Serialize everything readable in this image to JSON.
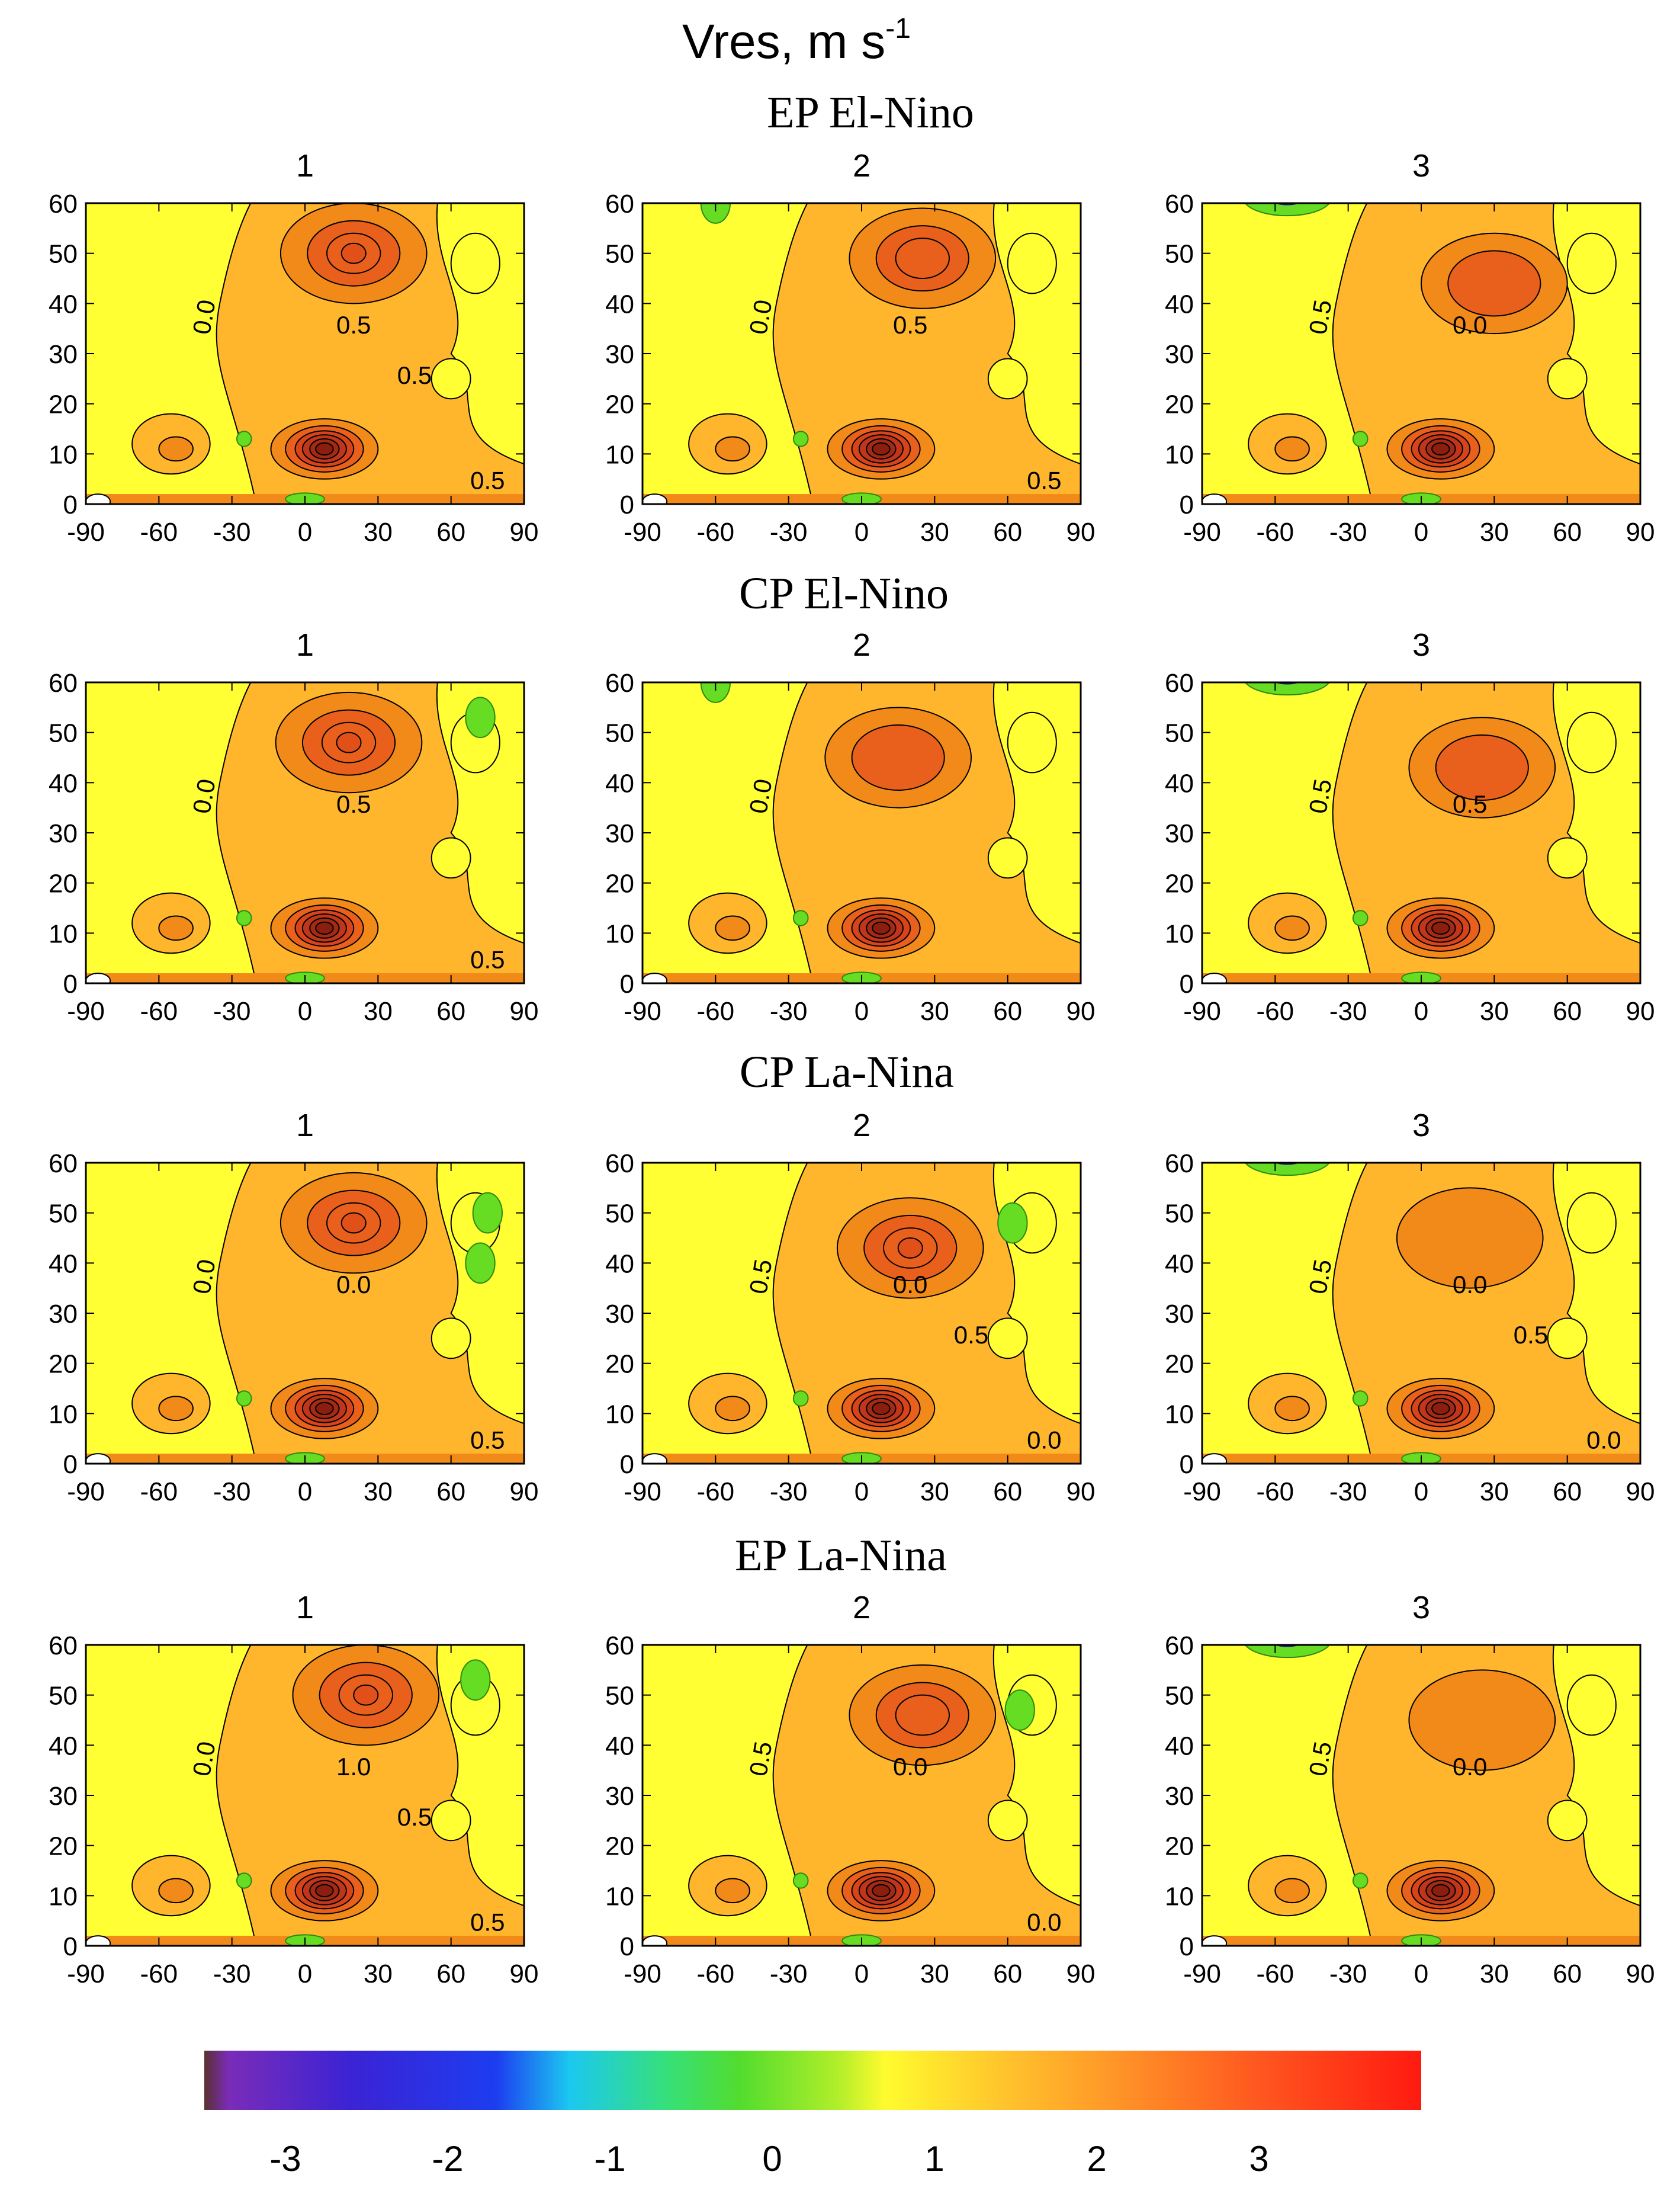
{
  "figure": {
    "title": "Vres, m s",
    "title_exponent": "-1",
    "colors": {
      "yellow": "#ffff33",
      "orange": "#ffb62c",
      "dark_orange": "#f28a1a",
      "red_orange": "#e9601c",
      "dark_red": "#8b1e0f",
      "green": "#66dd22",
      "blue": "#1f33cc"
    }
  },
  "chart_data": {
    "type": "heatmap",
    "variable": "Vres",
    "units": "m s-1",
    "xlim": [
      -90,
      90
    ],
    "ylim": [
      0,
      60
    ],
    "x_ticks": [
      "-90",
      "-60",
      "-30",
      "0",
      "30",
      "60",
      "90"
    ],
    "y_ticks": [
      "0",
      "10",
      "20",
      "30",
      "40",
      "50",
      "60"
    ],
    "panel_columns": [
      "1",
      "2",
      "3"
    ],
    "colorbar": {
      "range": [
        -3.5,
        4
      ],
      "ticks": [
        "-3",
        "-2",
        "-1",
        "0",
        "1",
        "2",
        "3"
      ],
      "tick_values": [
        -3,
        -2,
        -1,
        0,
        1,
        2,
        3
      ]
    },
    "rows": [
      {
        "title": "EP El-Nino",
        "panels": [
          {
            "label": "1",
            "contour_labels": [
              "0.0",
              "0.5",
              "0.5",
              "0.5"
            ],
            "upper_max_lat": 20,
            "upper_max_alt": 50,
            "upper_strength": 3,
            "green_spots": []
          },
          {
            "label": "2",
            "contour_labels": [
              "0.0",
              "0.5",
              "0.5"
            ],
            "upper_max_lat": 25,
            "upper_max_alt": 49,
            "upper_strength": 2,
            "green_spots": [
              {
                "lat": -60,
                "alt": 60
              }
            ]
          },
          {
            "label": "3",
            "contour_labels": [
              "0.5",
              "0.0"
            ],
            "upper_max_lat": 30,
            "upper_max_alt": 44,
            "upper_strength": 1,
            "green_spots": [],
            "blue_top": true
          }
        ]
      },
      {
        "title": "CP El-Nino",
        "panels": [
          {
            "label": "1",
            "contour_labels": [
              "0.0",
              "0.5",
              "0.5"
            ],
            "upper_max_lat": 18,
            "upper_max_alt": 48,
            "upper_strength": 3,
            "green_spots": [
              {
                "lat": 72,
                "alt": 53
              }
            ]
          },
          {
            "label": "2",
            "contour_labels": [
              "0.0"
            ],
            "upper_max_lat": 15,
            "upper_max_alt": 45,
            "upper_strength": 1,
            "green_spots": [
              {
                "lat": -60,
                "alt": 60
              }
            ]
          },
          {
            "label": "3",
            "contour_labels": [
              "0.5",
              "0.5"
            ],
            "upper_max_lat": 25,
            "upper_max_alt": 43,
            "upper_strength": 1,
            "green_spots": [],
            "blue_top": true
          }
        ]
      },
      {
        "title": "CP La-Nina",
        "panels": [
          {
            "label": "1",
            "contour_labels": [
              "0.0",
              "0.0",
              "0.5"
            ],
            "upper_max_lat": 20,
            "upper_max_alt": 48,
            "upper_strength": 3,
            "green_spots": [
              {
                "lat": 75,
                "alt": 50
              },
              {
                "lat": 72,
                "alt": 40
              }
            ]
          },
          {
            "label": "2",
            "contour_labels": [
              "0.5",
              "0.0",
              "0.0",
              "0.5"
            ],
            "upper_max_lat": 20,
            "upper_max_alt": 43,
            "upper_strength": 3,
            "green_spots": [
              {
                "lat": 62,
                "alt": 48
              }
            ]
          },
          {
            "label": "3",
            "contour_labels": [
              "0.5",
              "0.0",
              "0.0",
              "0.5"
            ],
            "upper_max_lat": 20,
            "upper_max_alt": 45,
            "upper_strength": 0,
            "green_spots": [],
            "blue_top": true
          }
        ]
      },
      {
        "title": "EP La-Nina",
        "panels": [
          {
            "label": "1",
            "contour_labels": [
              "0.0",
              "1.0",
              "0.5",
              "0.5"
            ],
            "upper_max_lat": 25,
            "upper_max_alt": 50,
            "upper_strength": 3,
            "green_spots": [
              {
                "lat": 70,
                "alt": 53
              }
            ]
          },
          {
            "label": "2",
            "contour_labels": [
              "0.5",
              "0.0",
              "0.0"
            ],
            "upper_max_lat": 25,
            "upper_max_alt": 46,
            "upper_strength": 2,
            "green_spots": [
              {
                "lat": 65,
                "alt": 47
              }
            ]
          },
          {
            "label": "3",
            "contour_labels": [
              "0.5",
              "0.0"
            ],
            "upper_max_lat": 25,
            "upper_max_alt": 45,
            "upper_strength": 0,
            "green_spots": [],
            "blue_top": true
          }
        ]
      }
    ]
  }
}
